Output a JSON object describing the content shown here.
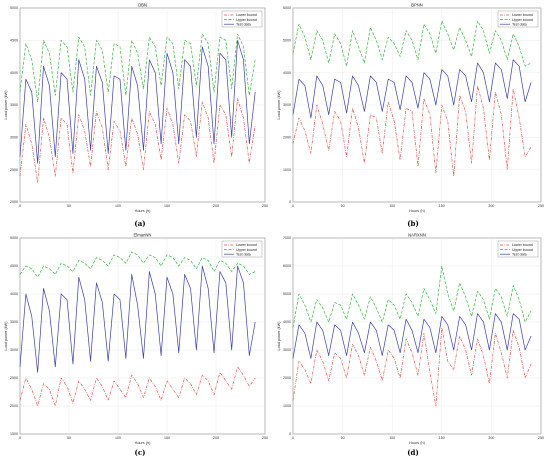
{
  "chart_data": [
    {
      "id": "a",
      "type": "line",
      "title": "DBN",
      "caption": "(a)",
      "xlabel": "Hours (h)",
      "ylabel": "Load power (kW)",
      "xlim": [
        0,
        250
      ],
      "ylim": [
        2000,
        5000
      ],
      "xticks": [
        0,
        50,
        100,
        150,
        200,
        250
      ],
      "yticks": [
        2000,
        2500,
        3000,
        3500,
        4000,
        4500,
        5000
      ],
      "legend_position": "top-right",
      "series": [
        {
          "name": "Lower bound",
          "color": "#d9534f",
          "dash": "dashdot",
          "x_start": 0,
          "x_step": 6,
          "values": [
            2400,
            3200,
            2900,
            2300,
            3300,
            3000,
            2400,
            3300,
            3200,
            2450,
            3350,
            3100,
            2550,
            3400,
            3150,
            2500,
            3250,
            3100,
            2550,
            3300,
            3050,
            2500,
            3400,
            3200,
            2650,
            3450,
            3200,
            2600,
            3350,
            3250,
            2700,
            3550,
            3300,
            2600,
            3500,
            3350,
            2700,
            3600,
            3300,
            2600,
            3200
          ]
        },
        {
          "name": "Upper bound",
          "color": "#3cb043",
          "dash": "dash",
          "x_start": 0,
          "x_step": 6,
          "values": [
            3700,
            4450,
            4200,
            3550,
            4500,
            4300,
            3650,
            4500,
            4400,
            3700,
            4550,
            4400,
            3650,
            4500,
            4350,
            3700,
            4450,
            4400,
            3650,
            4500,
            4300,
            3750,
            4550,
            4400,
            3800,
            4550,
            4450,
            3750,
            4500,
            4450,
            3800,
            4600,
            4450,
            3700,
            4550,
            4500,
            3750,
            4600,
            4400,
            3650,
            4200
          ]
        },
        {
          "name": "Test data",
          "color": "#3b3fa8",
          "dash": "solid",
          "x_start": 0,
          "x_step": 6,
          "values": [
            2700,
            3900,
            3700,
            2600,
            4100,
            3800,
            2700,
            4000,
            3900,
            2750,
            4200,
            3900,
            2800,
            4100,
            3850,
            2750,
            3950,
            3900,
            2800,
            4100,
            3800,
            2800,
            4200,
            4000,
            2900,
            4300,
            4000,
            2900,
            4200,
            4100,
            3000,
            4400,
            4100,
            2900,
            4300,
            4200,
            3000,
            4500,
            4200,
            2900,
            3700
          ]
        }
      ]
    },
    {
      "id": "b",
      "type": "line",
      "title": "BPNN",
      "caption": "(b)",
      "xlabel": "Hours (h)",
      "ylabel": "Load power (kW)",
      "xlim": [
        0,
        250
      ],
      "ylim": [
        0,
        6000
      ],
      "xticks": [
        0,
        50,
        100,
        150,
        200,
        250
      ],
      "yticks": [
        0,
        1000,
        2000,
        3000,
        4000,
        5000,
        6000
      ],
      "legend_position": "top-right",
      "series": [
        {
          "name": "Lower bound",
          "color": "#d9534f",
          "dash": "dashdot",
          "x_start": 0,
          "x_step": 6,
          "values": [
            1800,
            2600,
            2200,
            1500,
            3000,
            2400,
            1600,
            2800,
            2500,
            1400,
            2900,
            2300,
            1200,
            2700,
            2600,
            1500,
            3100,
            2500,
            1300,
            2900,
            2800,
            1100,
            3200,
            2700,
            900,
            3000,
            2500,
            800,
            3300,
            2800,
            1200,
            3600,
            2900,
            1300,
            3400,
            2700,
            1000,
            3500,
            2600,
            1400,
            1700
          ]
        },
        {
          "name": "Upper bound",
          "color": "#3cb043",
          "dash": "dash",
          "x_start": 0,
          "x_step": 6,
          "values": [
            4600,
            5500,
            5100,
            4400,
            5300,
            5000,
            4300,
            5200,
            4900,
            4200,
            5300,
            4800,
            4300,
            5400,
            5000,
            4400,
            5100,
            4900,
            4500,
            5300,
            5000,
            4400,
            5500,
            5200,
            4600,
            5600,
            5200,
            4700,
            5400,
            5000,
            4500,
            5600,
            5300,
            4600,
            5300,
            5000,
            4400,
            5200,
            4800,
            4200,
            4300
          ]
        },
        {
          "name": "Test data",
          "color": "#3b3fa8",
          "dash": "solid",
          "x_start": 0,
          "x_step": 6,
          "values": [
            2700,
            3800,
            3600,
            2600,
            3900,
            3600,
            2700,
            3800,
            3700,
            2750,
            3900,
            3600,
            2800,
            3900,
            3700,
            2800,
            3800,
            3700,
            2850,
            3900,
            3700,
            2900,
            4000,
            3800,
            3000,
            4100,
            3900,
            3000,
            4100,
            3900,
            3100,
            4300,
            4000,
            3100,
            4300,
            4100,
            3200,
            4400,
            4200,
            3100,
            3700
          ]
        }
      ]
    },
    {
      "id": "c",
      "type": "line",
      "title": "ElmanNN",
      "caption": "(c)",
      "xlabel": "Hours (h)",
      "ylabel": "Load power (kW)",
      "xlim": [
        0,
        250
      ],
      "ylim": [
        1500,
        5000
      ],
      "xticks": [
        0,
        50,
        100,
        150,
        200,
        250
      ],
      "yticks": [
        1500,
        2000,
        2500,
        3000,
        3500,
        4000,
        4500,
        5000
      ],
      "legend_position": "top-right",
      "series": [
        {
          "name": "Lower bound",
          "color": "#d9534f",
          "dash": "dashdot",
          "x_start": 0,
          "x_step": 6,
          "values": [
            2100,
            2500,
            2300,
            2000,
            2400,
            2300,
            2000,
            2500,
            2350,
            2050,
            2450,
            2300,
            2100,
            2500,
            2350,
            2100,
            2450,
            2300,
            2150,
            2550,
            2400,
            2150,
            2500,
            2350,
            2100,
            2450,
            2300,
            2150,
            2500,
            2400,
            2200,
            2550,
            2450,
            2200,
            2600,
            2450,
            2300,
            2700,
            2550,
            2350,
            2500
          ]
        },
        {
          "name": "Upper bound",
          "color": "#3cb043",
          "dash": "dash",
          "x_start": 0,
          "x_step": 6,
          "values": [
            4350,
            4500,
            4450,
            4300,
            4500,
            4450,
            4350,
            4550,
            4500,
            4400,
            4600,
            4550,
            4450,
            4650,
            4600,
            4500,
            4700,
            4650,
            4550,
            4750,
            4700,
            4550,
            4700,
            4650,
            4500,
            4700,
            4650,
            4500,
            4650,
            4600,
            4450,
            4650,
            4600,
            4400,
            4600,
            4550,
            4400,
            4550,
            4500,
            4350,
            4400
          ]
        },
        {
          "name": "Test data",
          "color": "#3b3fa8",
          "dash": "solid",
          "x_start": 0,
          "x_step": 6,
          "values": [
            2700,
            4000,
            3600,
            2600,
            4100,
            3700,
            2700,
            4000,
            3900,
            2750,
            4300,
            3900,
            2800,
            4200,
            3850,
            2800,
            4000,
            3900,
            2850,
            4350,
            3800,
            2850,
            4400,
            4000,
            2900,
            4300,
            4000,
            2950,
            4350,
            4100,
            3000,
            4500,
            4100,
            2950,
            4400,
            4200,
            3000,
            4500,
            4200,
            2900,
            3500
          ]
        }
      ]
    },
    {
      "id": "d",
      "type": "line",
      "title": "NARXNN",
      "caption": "(d)",
      "xlabel": "Hours (h)",
      "ylabel": "Load power (kW)",
      "xlim": [
        0,
        250
      ],
      "ylim": [
        0,
        7000
      ],
      "xticks": [
        0,
        50,
        100,
        150,
        200,
        250
      ],
      "yticks": [
        0,
        1000,
        2000,
        3000,
        4000,
        5000,
        6000,
        7000
      ],
      "legend_position": "top-right",
      "series": [
        {
          "name": "Lower bound",
          "color": "#d9534f",
          "dash": "dashdot",
          "x_start": 0,
          "x_step": 6,
          "values": [
            1200,
            2600,
            2300,
            1800,
            3000,
            2600,
            1900,
            2900,
            2700,
            2000,
            3200,
            2800,
            2100,
            3100,
            2600,
            1900,
            3000,
            2700,
            2000,
            3400,
            2900,
            2100,
            3600,
            2200,
            1000,
            3800,
            2600,
            2300,
            3500,
            3000,
            2100,
            3400,
            2800,
            1800,
            3600,
            2900,
            2000,
            3700,
            3100,
            2000,
            2500
          ]
        },
        {
          "name": "Upper bound",
          "color": "#3cb043",
          "dash": "dash",
          "x_start": 0,
          "x_step": 6,
          "values": [
            3800,
            5000,
            4600,
            4000,
            4800,
            4500,
            4000,
            4700,
            4600,
            4100,
            5000,
            4600,
            4100,
            4900,
            4500,
            4000,
            4800,
            4600,
            4100,
            5000,
            4700,
            4200,
            5200,
            4800,
            4300,
            6000,
            5000,
            4400,
            5400,
            4900,
            4200,
            5100,
            4800,
            4100,
            5200,
            4900,
            4200,
            5300,
            4800,
            4000,
            4400
          ]
        },
        {
          "name": "Test data",
          "color": "#3b3fa8",
          "dash": "solid",
          "x_start": 0,
          "x_step": 6,
          "values": [
            2700,
            3900,
            3600,
            2700,
            4000,
            3700,
            2800,
            3900,
            3700,
            2800,
            4000,
            3600,
            2900,
            4000,
            3700,
            2800,
            3900,
            3700,
            2900,
            4100,
            3700,
            2900,
            4100,
            3800,
            2900,
            4200,
            3900,
            3000,
            4200,
            3900,
            3000,
            4300,
            4000,
            3000,
            4300,
            4000,
            3000,
            4300,
            4100,
            3000,
            3500
          ]
        }
      ]
    }
  ]
}
